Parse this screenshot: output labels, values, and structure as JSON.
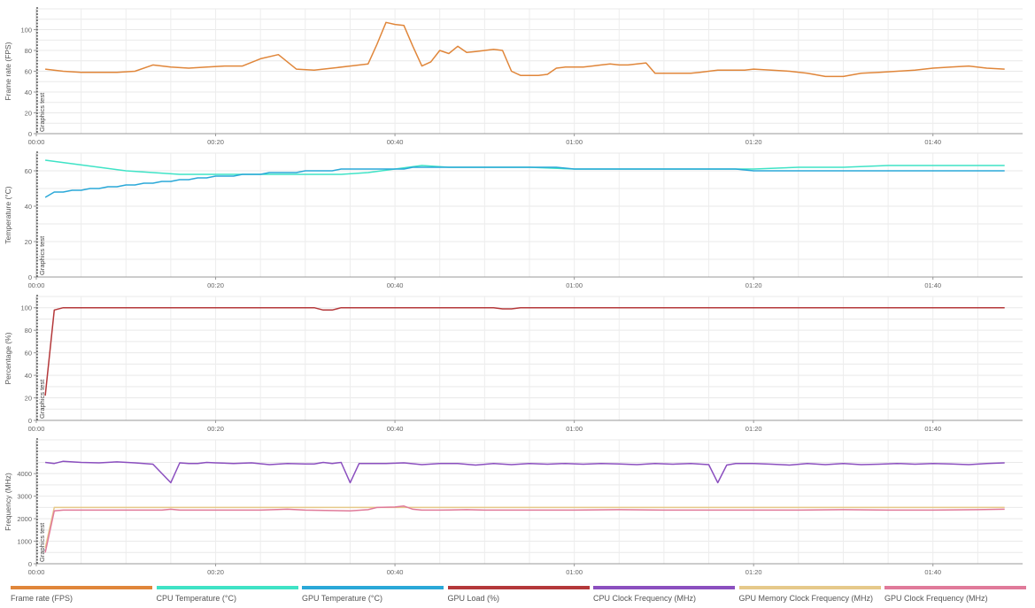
{
  "chart_data": [
    {
      "type": "line",
      "ylabel": "Frame rate (FPS)",
      "ylim": [
        0,
        120
      ],
      "yticks": [
        0,
        20,
        40,
        60,
        80,
        100
      ],
      "xlim": [
        0,
        110
      ],
      "xticks": [
        "00:00",
        "00:20",
        "00:40",
        "01:00",
        "01:20",
        "01:40"
      ],
      "marker_label": "Graphics test",
      "grid": true,
      "series": [
        {
          "name": "Frame rate (FPS)",
          "color": "#e0863a",
          "x": [
            1,
            3,
            5,
            7,
            9,
            11,
            13,
            15,
            17,
            19,
            21,
            23,
            25,
            27,
            29,
            31,
            33,
            35,
            37,
            38,
            39,
            40,
            41,
            42,
            43,
            44,
            45,
            46,
            47,
            48,
            49,
            50,
            51,
            52,
            53,
            54,
            55,
            56,
            57,
            58,
            59,
            60,
            61,
            62,
            63,
            64,
            65,
            66,
            67,
            68,
            69,
            70,
            71,
            72,
            73,
            74,
            75,
            76,
            77,
            78,
            79,
            80,
            82,
            84,
            86,
            88,
            90,
            92,
            94,
            96,
            98,
            100,
            102,
            104,
            106,
            108
          ],
          "y": [
            62,
            60,
            59,
            59,
            59,
            60,
            66,
            64,
            63,
            64,
            65,
            65,
            72,
            76,
            62,
            61,
            63,
            65,
            67,
            86,
            107,
            105,
            104,
            84,
            65,
            69,
            80,
            77,
            84,
            78,
            79,
            80,
            81,
            80,
            60,
            56,
            56,
            56,
            57,
            63,
            64,
            64,
            64,
            65,
            66,
            67,
            66,
            66,
            67,
            68,
            58,
            58,
            58,
            58,
            58,
            59,
            60,
            61,
            61,
            61,
            61,
            62,
            61,
            60,
            58,
            55,
            55,
            58,
            59,
            60,
            61,
            63,
            64,
            65,
            63,
            62
          ]
        }
      ]
    },
    {
      "type": "line",
      "ylabel": "Temperature (°C)",
      "ylim": [
        0,
        70
      ],
      "yticks": [
        0,
        20,
        40,
        60
      ],
      "xlim": [
        0,
        110
      ],
      "xticks": [
        "00:00",
        "00:20",
        "00:40",
        "01:00",
        "01:20",
        "01:40"
      ],
      "marker_label": "Graphics test",
      "grid": true,
      "series": [
        {
          "name": "CPU Temperature (°C)",
          "color": "#3fe3c6",
          "x": [
            1,
            4,
            7,
            10,
            13,
            16,
            19,
            22,
            25,
            28,
            31,
            34,
            37,
            40,
            43,
            46,
            50,
            55,
            60,
            65,
            70,
            75,
            80,
            85,
            90,
            95,
            100,
            108
          ],
          "y": [
            66,
            64,
            62,
            60,
            59,
            58,
            58,
            58,
            58,
            58,
            58,
            58,
            59,
            61,
            63,
            62,
            62,
            62,
            61,
            61,
            61,
            61,
            61,
            62,
            62,
            63,
            63,
            63
          ]
        },
        {
          "name": "GPU Temperature (°C)",
          "color": "#2aa8d8",
          "x": [
            1,
            2,
            3,
            4,
            5,
            6,
            7,
            8,
            9,
            10,
            11,
            12,
            13,
            14,
            15,
            16,
            17,
            18,
            19,
            20,
            21,
            22,
            23,
            24,
            25,
            26,
            27,
            28,
            29,
            30,
            31,
            32,
            33,
            34,
            35,
            36,
            37,
            38,
            39,
            40,
            41,
            42,
            43,
            44,
            45,
            46,
            47,
            48,
            49,
            50,
            55,
            58,
            60,
            70,
            78,
            80,
            90,
            100,
            108
          ],
          "y": [
            45,
            48,
            48,
            49,
            49,
            50,
            50,
            51,
            51,
            52,
            52,
            53,
            53,
            54,
            54,
            55,
            55,
            56,
            56,
            57,
            57,
            57,
            58,
            58,
            58,
            59,
            59,
            59,
            59,
            60,
            60,
            60,
            60,
            61,
            61,
            61,
            61,
            61,
            61,
            61,
            61,
            62,
            62,
            62,
            62,
            62,
            62,
            62,
            62,
            62,
            62,
            62,
            61,
            61,
            61,
            60,
            60,
            60,
            60
          ]
        }
      ]
    },
    {
      "type": "line",
      "ylabel": "Percentage (%)",
      "ylim": [
        0,
        110
      ],
      "yticks": [
        0,
        20,
        40,
        60,
        80,
        100
      ],
      "xlim": [
        0,
        110
      ],
      "xticks": [
        "00:00",
        "00:20",
        "00:40",
        "01:00",
        "01:20",
        "01:40"
      ],
      "marker_label": "Graphics test",
      "grid": true,
      "series": [
        {
          "name": "GPU Load (%)",
          "color": "#b4383a",
          "x": [
            1,
            2,
            3,
            10,
            20,
            31,
            32,
            33,
            34,
            35,
            40,
            50,
            51,
            52,
            53,
            54,
            55,
            60,
            70,
            80,
            90,
            100,
            108
          ],
          "y": [
            22,
            98,
            100,
            100,
            100,
            100,
            98,
            98,
            100,
            100,
            100,
            100,
            100,
            99,
            99,
            100,
            100,
            100,
            100,
            100,
            100,
            100,
            100
          ]
        }
      ]
    },
    {
      "type": "line",
      "ylabel": "Frequency (MHz)",
      "ylim": [
        0,
        5500
      ],
      "yticks": [
        0,
        1000,
        2000,
        3000,
        4000
      ],
      "xlim": [
        0,
        110
      ],
      "xticks": [
        "00:00",
        "00:20",
        "00:40",
        "01:00",
        "01:20",
        "01:40"
      ],
      "marker_label": "Graphics test",
      "grid": true,
      "series": [
        {
          "name": "CPU Clock Frequency (MHz)",
          "color": "#8b4fbf",
          "x": [
            1,
            2,
            3,
            5,
            7,
            9,
            11,
            13,
            15,
            16,
            17,
            18,
            19,
            20,
            22,
            24,
            26,
            28,
            30,
            31,
            32,
            33,
            34,
            35,
            36,
            37,
            39,
            41,
            43,
            45,
            47,
            49,
            51,
            53,
            55,
            57,
            59,
            61,
            63,
            65,
            67,
            69,
            71,
            73,
            75,
            76,
            77,
            78,
            80,
            82,
            84,
            86,
            88,
            90,
            92,
            94,
            96,
            98,
            100,
            102,
            104,
            106,
            108
          ],
          "y": [
            4500,
            4450,
            4550,
            4500,
            4480,
            4520,
            4480,
            4420,
            3600,
            4480,
            4450,
            4450,
            4500,
            4480,
            4450,
            4480,
            4400,
            4450,
            4430,
            4430,
            4500,
            4450,
            4500,
            3600,
            4450,
            4450,
            4450,
            4480,
            4400,
            4450,
            4450,
            4380,
            4450,
            4400,
            4450,
            4420,
            4450,
            4420,
            4450,
            4430,
            4400,
            4450,
            4420,
            4450,
            4400,
            3600,
            4380,
            4450,
            4450,
            4420,
            4380,
            4450,
            4400,
            4450,
            4400,
            4420,
            4450,
            4420,
            4450,
            4430,
            4400,
            4450,
            4480
          ]
        },
        {
          "name": "GPU Memory Clock Frequency (MHz)",
          "color": "#e6c98a",
          "x": [
            1,
            2,
            10,
            20,
            30,
            40,
            50,
            60,
            70,
            80,
            90,
            100,
            108
          ],
          "y": [
            700,
            2500,
            2500,
            2500,
            2500,
            2500,
            2500,
            2500,
            2500,
            2500,
            2500,
            2500,
            2500
          ]
        },
        {
          "name": "GPU Clock Frequency (MHz)",
          "color": "#e07a9a",
          "x": [
            1,
            2,
            3,
            10,
            14,
            15,
            16,
            20,
            25,
            28,
            30,
            35,
            37,
            38,
            40,
            41,
            42,
            43,
            45,
            48,
            50,
            55,
            60,
            65,
            70,
            75,
            80,
            85,
            90,
            95,
            100,
            105,
            108
          ],
          "y": [
            500,
            2350,
            2380,
            2380,
            2380,
            2420,
            2380,
            2380,
            2380,
            2420,
            2380,
            2350,
            2400,
            2500,
            2520,
            2560,
            2420,
            2380,
            2380,
            2400,
            2380,
            2380,
            2380,
            2400,
            2380,
            2380,
            2380,
            2380,
            2400,
            2380,
            2380,
            2400,
            2420
          ]
        }
      ]
    }
  ],
  "legend": [
    {
      "label": "Frame rate (FPS)",
      "color": "#e0863a"
    },
    {
      "label": "CPU Temperature (°C)",
      "color": "#3fe3c6"
    },
    {
      "label": "GPU Temperature (°C)",
      "color": "#2aa8d8"
    },
    {
      "label": "GPU Load (%)",
      "color": "#b4383a"
    },
    {
      "label": "CPU Clock Frequency (MHz)",
      "color": "#8b4fbf"
    },
    {
      "label": "GPU Memory Clock Frequency (MHz)",
      "color": "#e6c98a"
    },
    {
      "label": "GPU Clock Frequency (MHz)",
      "color": "#e07a9a"
    }
  ]
}
